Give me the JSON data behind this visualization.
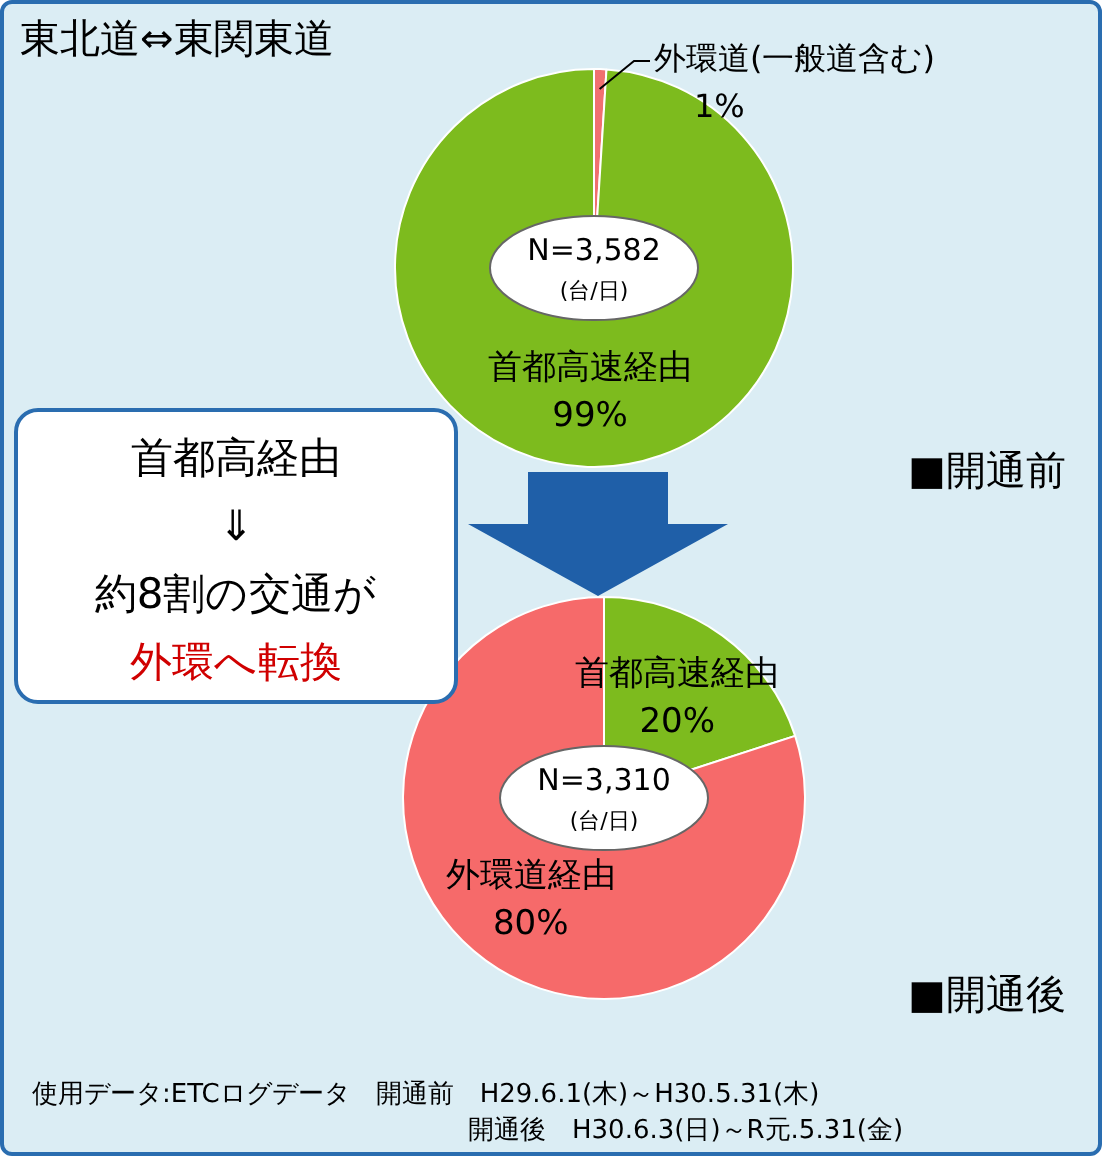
{
  "chart_data": [
    {
      "type": "pie",
      "title": "東北道⇔東関東道",
      "categories": [
        "外環道(一般道含む)",
        "首都高速経由"
      ],
      "values": [
        1,
        99
      ],
      "value_labels": [
        "1%",
        "99%"
      ],
      "colors": [
        "#f07070",
        "#7dbb1e"
      ],
      "annotations": [
        "N=3,582",
        "(台/日)",
        "■開通前"
      ]
    },
    {
      "type": "pie",
      "categories": [
        "首都高速経由",
        "外環道経由"
      ],
      "values": [
        20,
        80
      ],
      "value_labels": [
        "20%",
        "80%"
      ],
      "colors": [
        "#7dbb1e",
        "#f66a6a"
      ],
      "annotations": [
        "N=3,310",
        "(台/日)",
        "■開通後",
        "首都高経由",
        "⇓",
        "約8割の交通が",
        "外環へ転換",
        "使用データ:ETCログデータ　開通前　H29.6.1(木)～H30.5.31(木)",
        "開通後　H30.6.3(日)～R元.5.31(金)"
      ]
    }
  ]
}
